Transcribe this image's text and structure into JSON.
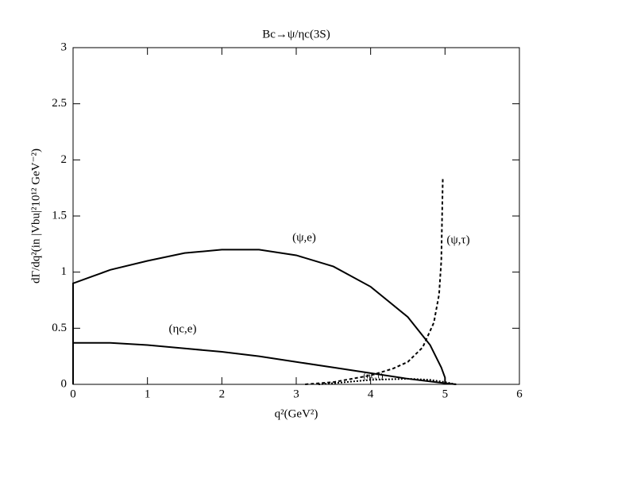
{
  "chart_data": {
    "type": "line",
    "title": "Bc→ψ/ηc(3S)",
    "x_label": "q²(GeV²)",
    "y_label": "dΓ/dq²(in |Vbu|²10¹² GeV⁻²)",
    "xlim": [
      0,
      6
    ],
    "ylim": [
      0,
      3
    ],
    "xticks": [
      0,
      1,
      2,
      3,
      4,
      5,
      6
    ],
    "yticks": [
      0,
      0.5,
      1,
      1.5,
      2,
      2.5,
      3
    ],
    "series": [
      {
        "name": "(ψ,e)",
        "color": "#000000",
        "dash": "solid",
        "x": [
          0,
          0,
          0.25,
          0.5,
          1,
          1.5,
          2,
          2.5,
          3,
          3.5,
          4,
          4.5,
          4.8,
          4.95,
          5.0,
          5.0
        ],
        "values": [
          0,
          0.9,
          0.96,
          1.02,
          1.1,
          1.17,
          1.2,
          1.2,
          1.15,
          1.05,
          0.87,
          0.6,
          0.35,
          0.15,
          0.06,
          0
        ]
      },
      {
        "name": "(ηc,e)",
        "color": "#000000",
        "dash": "solid",
        "x": [
          0,
          0,
          0.5,
          1,
          1.5,
          2,
          2.5,
          3,
          3.5,
          4,
          4.5,
          5,
          5.15
        ],
        "values": [
          0,
          0.37,
          0.37,
          0.35,
          0.32,
          0.29,
          0.25,
          0.2,
          0.15,
          0.1,
          0.05,
          0.01,
          0
        ]
      },
      {
        "name": "(ψ,τ)",
        "color": "#000000",
        "dash": "dashed",
        "x": [
          3.12,
          3.5,
          4,
          4.3,
          4.5,
          4.7,
          4.85,
          4.92,
          4.95,
          4.97
        ],
        "values": [
          0,
          0.02,
          0.08,
          0.14,
          0.2,
          0.33,
          0.55,
          0.8,
          1.1,
          1.83
        ]
      },
      {
        "name": "(ηc,τ)",
        "color": "#000000",
        "dash": "dotted",
        "x": [
          3.3,
          3.5,
          4,
          4.5,
          4.8,
          5.0,
          5.15
        ],
        "values": [
          0,
          0.01,
          0.04,
          0.05,
          0.04,
          0.02,
          0
        ]
      }
    ]
  }
}
